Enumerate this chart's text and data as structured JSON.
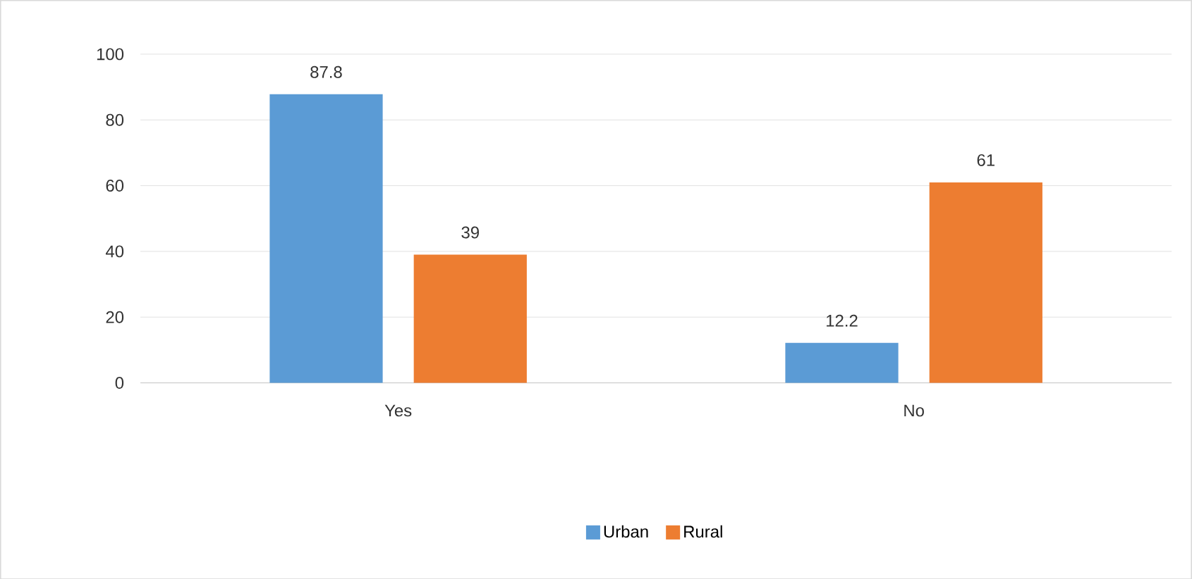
{
  "chart_data": {
    "type": "bar",
    "categories": [
      "Yes",
      "No"
    ],
    "series": [
      {
        "name": "Urban",
        "color": "#5b9bd5",
        "values": [
          87.8,
          12.2
        ]
      },
      {
        "name": "Rural",
        "color": "#ed7d31",
        "values": [
          39,
          61
        ]
      }
    ],
    "ylim": [
      0,
      100
    ],
    "yticks": [
      0,
      20,
      40,
      60,
      80,
      100
    ],
    "grid": "y",
    "legend": "bottom",
    "data_labels": true
  }
}
